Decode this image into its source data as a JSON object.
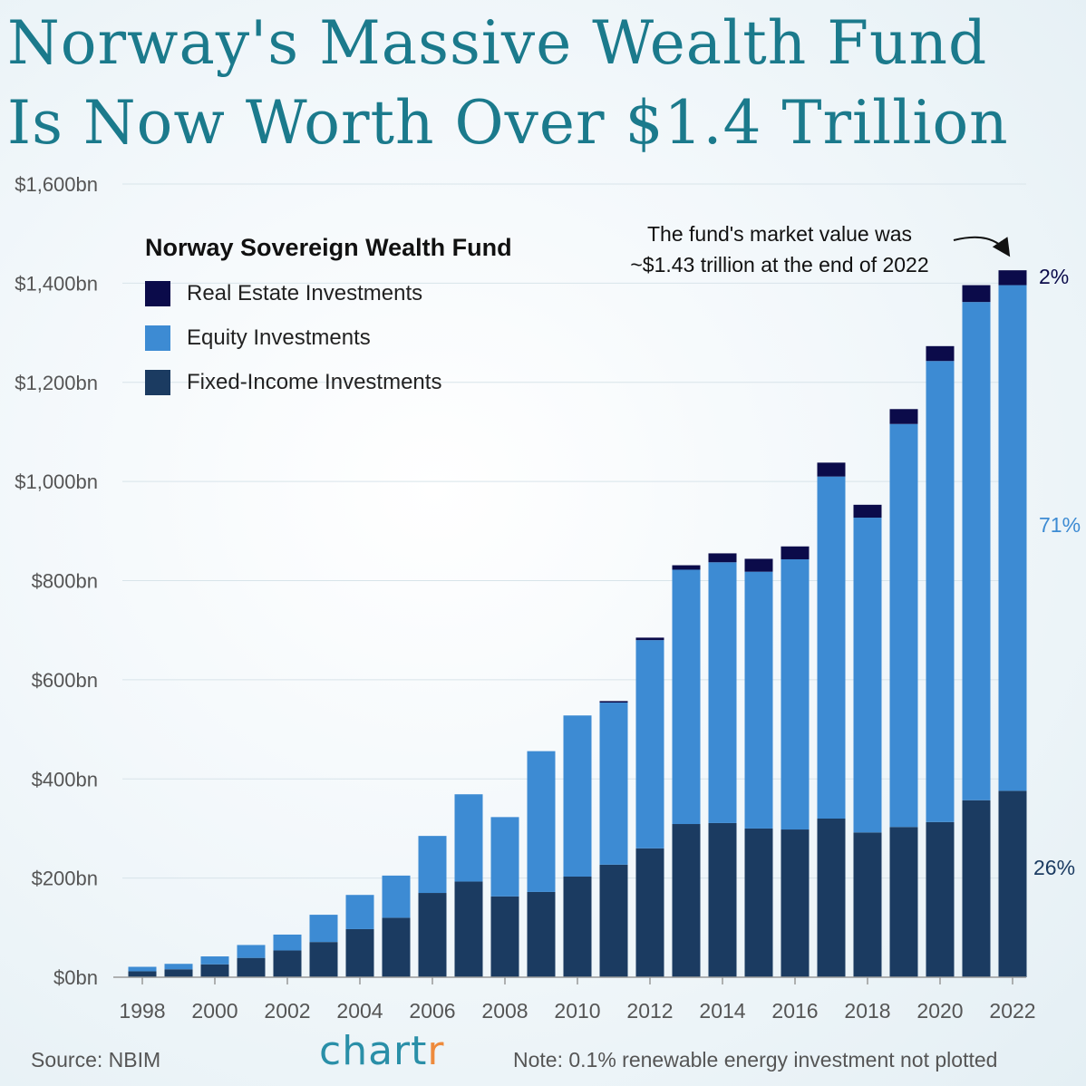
{
  "title_line1": "Norway's Massive Wealth Fund",
  "title_line2": "Is Now Worth Over $1.4 Trillion",
  "legend": {
    "title": "Norway Sovereign Wealth Fund",
    "items": [
      {
        "label": "Real Estate Investments",
        "color": "#0b0b4a"
      },
      {
        "label": "Equity Investments",
        "color": "#3d8bd3"
      },
      {
        "label": "Fixed-Income Investments",
        "color": "#1b3b61"
      }
    ]
  },
  "annotation": {
    "line1": "The fund's market value was",
    "line2": "~$1.43 trillion at the end of 2022"
  },
  "shares": {
    "real_estate": {
      "label": "2%",
      "color": "#0b0b4a"
    },
    "equity": {
      "label": "71%",
      "color": "#3d8bd3"
    },
    "fixed_income": {
      "label": "26%",
      "color": "#1b3b61"
    }
  },
  "footer": {
    "source": "Source: NBIM",
    "note": "Note: 0.1% renewable energy investment not plotted",
    "logo_main": "chart",
    "logo_accent": "r"
  },
  "chart_data": {
    "type": "bar",
    "stacked": true,
    "categories": [
      1998,
      1999,
      2000,
      2001,
      2002,
      2003,
      2004,
      2005,
      2006,
      2007,
      2008,
      2009,
      2010,
      2011,
      2012,
      2013,
      2014,
      2015,
      2016,
      2017,
      2018,
      2019,
      2020,
      2021,
      2022
    ],
    "x_tick_labels": [
      "1998",
      "2000",
      "2002",
      "2004",
      "2006",
      "2008",
      "2010",
      "2012",
      "2014",
      "2016",
      "2018",
      "2020",
      "2022"
    ],
    "y_tick_labels": [
      "$0bn",
      "$200bn",
      "$400bn",
      "$600bn",
      "$800bn",
      "$1,000bn",
      "$1,200bn",
      "$1,400bn",
      "$1,600bn"
    ],
    "y_ticks": [
      0,
      200,
      400,
      600,
      800,
      1000,
      1200,
      1400,
      1600
    ],
    "ylim": [
      0,
      1600
    ],
    "unit": "bn USD",
    "grid": true,
    "legend_position": "top-left",
    "series": [
      {
        "name": "Fixed-Income Investments",
        "color": "#1b3b61",
        "values": [
          12,
          16,
          26,
          39,
          54,
          71,
          97,
          120,
          170,
          193,
          163,
          172,
          203,
          227,
          260,
          309,
          311,
          300,
          298,
          320,
          292,
          303,
          313,
          357,
          376
        ]
      },
      {
        "name": "Equity Investments",
        "color": "#3d8bd3",
        "values": [
          9,
          11,
          16,
          26,
          32,
          55,
          69,
          85,
          115,
          176,
          160,
          284,
          325,
          327,
          420,
          513,
          526,
          518,
          545,
          690,
          635,
          813,
          930,
          1005,
          1020
        ]
      },
      {
        "name": "Real Estate Investments",
        "color": "#0b0b4a",
        "values": [
          0,
          0,
          0,
          0,
          0,
          0,
          0,
          0,
          0,
          0,
          0,
          0,
          0,
          3,
          5,
          9,
          18,
          26,
          26,
          28,
          26,
          30,
          30,
          34,
          30
        ]
      }
    ]
  }
}
